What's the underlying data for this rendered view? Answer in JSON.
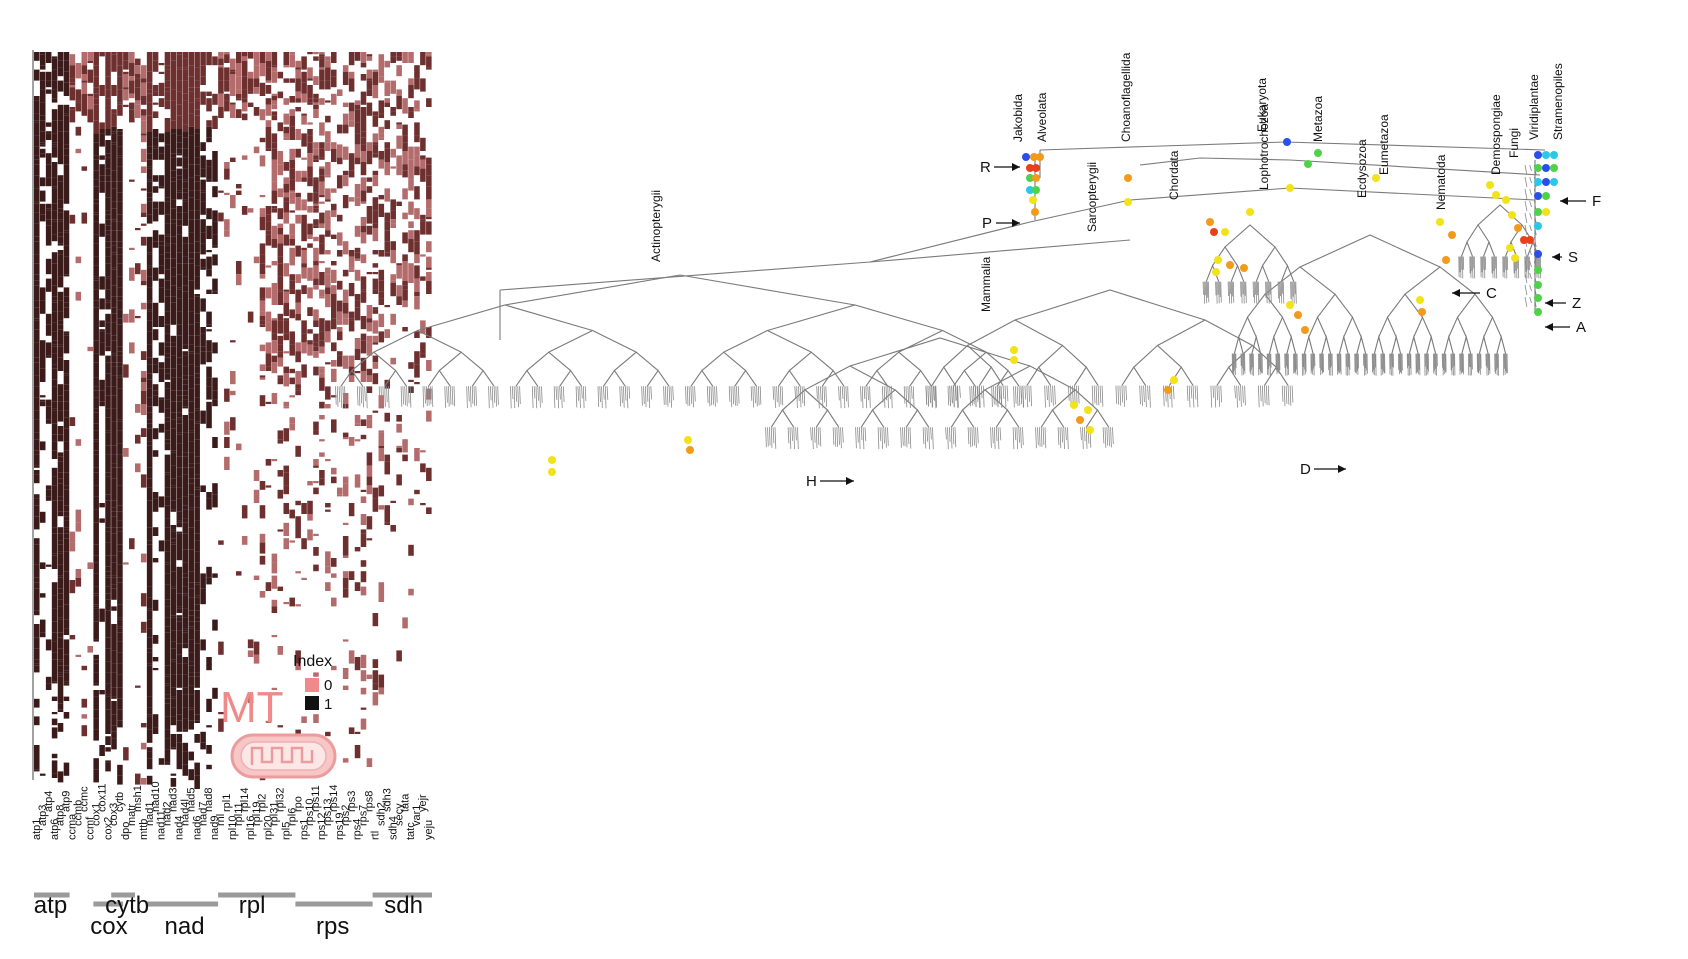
{
  "heatmap": {
    "genes": [
      "atp1",
      "atp3",
      "atp4",
      "atp6",
      "atp8",
      "atp9",
      "ccma",
      "ccmb",
      "ccmc",
      "ccmf",
      "cox1",
      "cox11",
      "cox2",
      "cox3",
      "cytb",
      "dpo",
      "matr",
      "msh1",
      "mttb",
      "nad1",
      "nad10",
      "nad11",
      "nad2",
      "nad3",
      "nad4",
      "nad4l",
      "nad5",
      "nad6",
      "nad7",
      "nad8",
      "nad9",
      "rnl",
      "rpl1",
      "rpl10",
      "rpl11",
      "rpl14",
      "rpl16",
      "rpl19",
      "rpl2",
      "rpl20",
      "rpl31",
      "rpl32",
      "rpl5",
      "rpl6",
      "rpo",
      "rps1",
      "rps10",
      "rps11",
      "rps12",
      "rps13",
      "rps14",
      "rps19",
      "rps2",
      "rps3",
      "rps4",
      "rps7",
      "rps8",
      "rtl",
      "sdh2",
      "sdh3",
      "sdh4",
      "secy",
      "tata",
      "tatc",
      "var1",
      "yejr",
      "yeju"
    ],
    "groups": [
      "atp",
      "cox",
      "cytb",
      "nad",
      "rpl",
      "rps",
      "sdh"
    ],
    "legend": {
      "title": "Index",
      "low_label": "0",
      "high_label": "1",
      "low_color": "#f08a8a",
      "high_color": "#111111"
    },
    "mt_label": "MT",
    "colors": {
      "dark": "#3b1a1a",
      "mid": "#6e2f2f",
      "light": "#b46b6b",
      "pale": "#d9a3a3"
    }
  },
  "tree": {
    "clades": [
      "Jakobida",
      "Alveolata",
      "Choanoflagellida",
      "Eukaryota",
      "Metazoa",
      "Lophotrochozoa",
      "Ecdysozoa",
      "Eumetazoa",
      "Chordata",
      "Nematoda",
      "Demospongiae",
      "Fungi",
      "Viridiplantae",
      "Stramenopiles",
      "Sarcopterygii",
      "Actinopterygii",
      "Mammalia"
    ],
    "markers": [
      "R",
      "P",
      "F",
      "S",
      "C",
      "Z",
      "A",
      "H",
      "D"
    ],
    "colors": {
      "branch": "#7a7a7a",
      "dot_yellow": "#f2e21a",
      "dot_orange": "#f29a1a",
      "dot_red": "#e8401a",
      "dot_green": "#4fd24a",
      "dot_blue": "#2a4fe8",
      "dot_cyan": "#2ac8e8"
    }
  }
}
